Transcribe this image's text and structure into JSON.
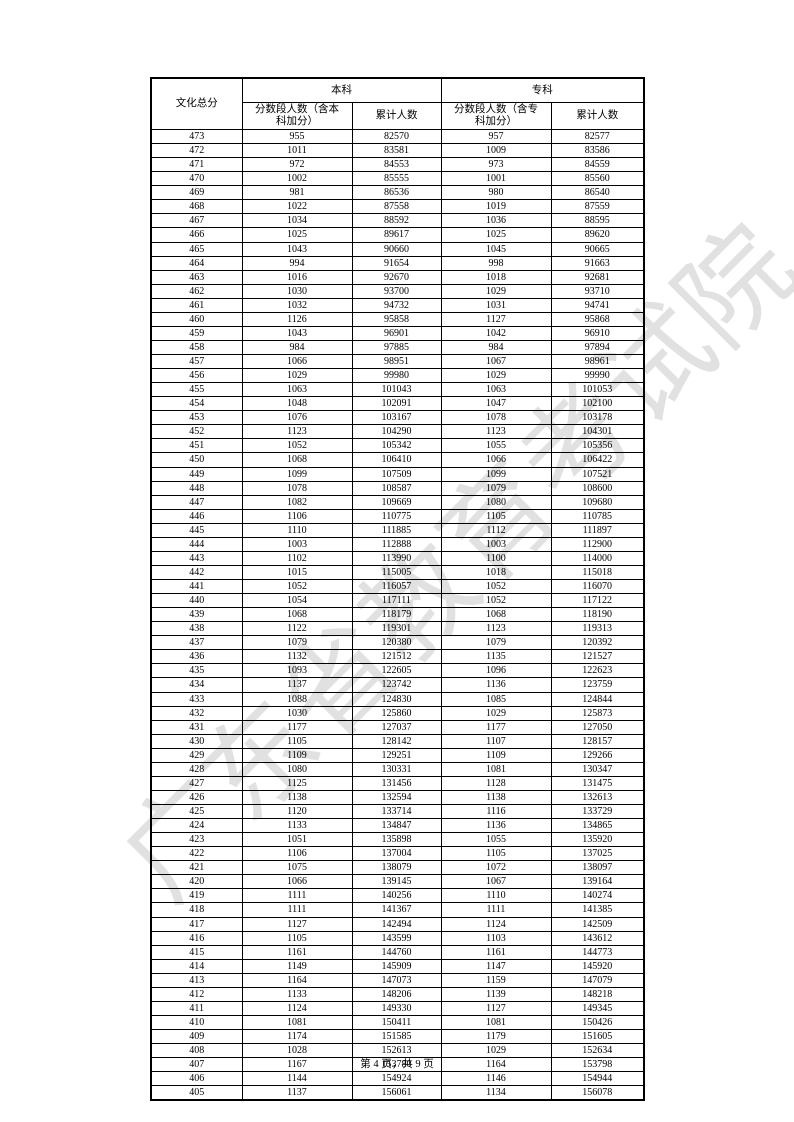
{
  "page": {
    "watermark": "广东省教育考试院",
    "footer": "第 4 页，共 9 页"
  },
  "table": {
    "headers": {
      "score": "文化总分",
      "group_benke": "本科",
      "group_zhuanke": "专科",
      "benke_segment": "分数段人数（含本\n科加分）",
      "benke_cumulative": "累计人数",
      "zhuanke_segment": "分数段人数（含专\n科加分）",
      "zhuanke_cumulative": "累计人数"
    },
    "rows": [
      [
        473,
        955,
        82570,
        957,
        82577
      ],
      [
        472,
        1011,
        83581,
        1009,
        83586
      ],
      [
        471,
        972,
        84553,
        973,
        84559
      ],
      [
        470,
        1002,
        85555,
        1001,
        85560
      ],
      [
        469,
        981,
        86536,
        980,
        86540
      ],
      [
        468,
        1022,
        87558,
        1019,
        87559
      ],
      [
        467,
        1034,
        88592,
        1036,
        88595
      ],
      [
        466,
        1025,
        89617,
        1025,
        89620
      ],
      [
        465,
        1043,
        90660,
        1045,
        90665
      ],
      [
        464,
        994,
        91654,
        998,
        91663
      ],
      [
        463,
        1016,
        92670,
        1018,
        92681
      ],
      [
        462,
        1030,
        93700,
        1029,
        93710
      ],
      [
        461,
        1032,
        94732,
        1031,
        94741
      ],
      [
        460,
        1126,
        95858,
        1127,
        95868
      ],
      [
        459,
        1043,
        96901,
        1042,
        96910
      ],
      [
        458,
        984,
        97885,
        984,
        97894
      ],
      [
        457,
        1066,
        98951,
        1067,
        98961
      ],
      [
        456,
        1029,
        99980,
        1029,
        99990
      ],
      [
        455,
        1063,
        101043,
        1063,
        101053
      ],
      [
        454,
        1048,
        102091,
        1047,
        102100
      ],
      [
        453,
        1076,
        103167,
        1078,
        103178
      ],
      [
        452,
        1123,
        104290,
        1123,
        104301
      ],
      [
        451,
        1052,
        105342,
        1055,
        105356
      ],
      [
        450,
        1068,
        106410,
        1066,
        106422
      ],
      [
        449,
        1099,
        107509,
        1099,
        107521
      ],
      [
        448,
        1078,
        108587,
        1079,
        108600
      ],
      [
        447,
        1082,
        109669,
        1080,
        109680
      ],
      [
        446,
        1106,
        110775,
        1105,
        110785
      ],
      [
        445,
        1110,
        111885,
        1112,
        111897
      ],
      [
        444,
        1003,
        112888,
        1003,
        112900
      ],
      [
        443,
        1102,
        113990,
        1100,
        114000
      ],
      [
        442,
        1015,
        115005,
        1018,
        115018
      ],
      [
        441,
        1052,
        116057,
        1052,
        116070
      ],
      [
        440,
        1054,
        117111,
        1052,
        117122
      ],
      [
        439,
        1068,
        118179,
        1068,
        118190
      ],
      [
        438,
        1122,
        119301,
        1123,
        119313
      ],
      [
        437,
        1079,
        120380,
        1079,
        120392
      ],
      [
        436,
        1132,
        121512,
        1135,
        121527
      ],
      [
        435,
        1093,
        122605,
        1096,
        122623
      ],
      [
        434,
        1137,
        123742,
        1136,
        123759
      ],
      [
        433,
        1088,
        124830,
        1085,
        124844
      ],
      [
        432,
        1030,
        125860,
        1029,
        125873
      ],
      [
        431,
        1177,
        127037,
        1177,
        127050
      ],
      [
        430,
        1105,
        128142,
        1107,
        128157
      ],
      [
        429,
        1109,
        129251,
        1109,
        129266
      ],
      [
        428,
        1080,
        130331,
        1081,
        130347
      ],
      [
        427,
        1125,
        131456,
        1128,
        131475
      ],
      [
        426,
        1138,
        132594,
        1138,
        132613
      ],
      [
        425,
        1120,
        133714,
        1116,
        133729
      ],
      [
        424,
        1133,
        134847,
        1136,
        134865
      ],
      [
        423,
        1051,
        135898,
        1055,
        135920
      ],
      [
        422,
        1106,
        137004,
        1105,
        137025
      ],
      [
        421,
        1075,
        138079,
        1072,
        138097
      ],
      [
        420,
        1066,
        139145,
        1067,
        139164
      ],
      [
        419,
        1111,
        140256,
        1110,
        140274
      ],
      [
        418,
        1111,
        141367,
        1111,
        141385
      ],
      [
        417,
        1127,
        142494,
        1124,
        142509
      ],
      [
        416,
        1105,
        143599,
        1103,
        143612
      ],
      [
        415,
        1161,
        144760,
        1161,
        144773
      ],
      [
        414,
        1149,
        145909,
        1147,
        145920
      ],
      [
        413,
        1164,
        147073,
        1159,
        147079
      ],
      [
        412,
        1133,
        148206,
        1139,
        148218
      ],
      [
        411,
        1124,
        149330,
        1127,
        149345
      ],
      [
        410,
        1081,
        150411,
        1081,
        150426
      ],
      [
        409,
        1174,
        151585,
        1179,
        151605
      ],
      [
        408,
        1028,
        152613,
        1029,
        152634
      ],
      [
        407,
        1167,
        153780,
        1164,
        153798
      ],
      [
        406,
        1144,
        154924,
        1146,
        154944
      ],
      [
        405,
        1137,
        156061,
        1134,
        156078
      ]
    ]
  }
}
